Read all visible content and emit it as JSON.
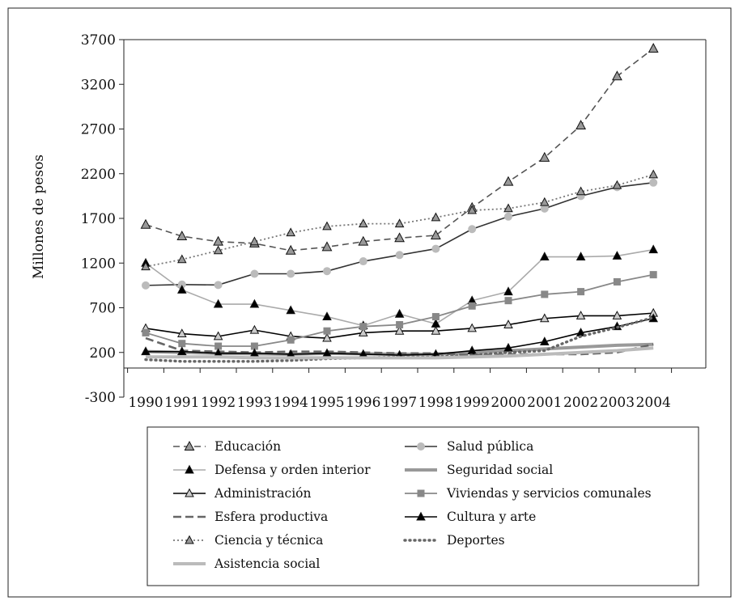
{
  "chart_data": {
    "type": "line",
    "title": "",
    "xlabel": "",
    "ylabel": "Millones de pesos",
    "ylim": [
      -300,
      3700
    ],
    "y_ticks": [
      -300,
      200,
      700,
      1200,
      1700,
      2200,
      2700,
      3200,
      3700
    ],
    "x": [
      "1990",
      "1991",
      "1992",
      "1993",
      "1994",
      "1995",
      "1996",
      "1997",
      "1998",
      "1999",
      "2000",
      "2001",
      "2002",
      "2003",
      "2004"
    ],
    "grid": false,
    "legend_position": "bottom",
    "series": [
      {
        "name": "Educación",
        "color": "#555555",
        "dash": "8,5",
        "width": 1.6,
        "marker": "triangle",
        "marker_fill": "#999999",
        "marker_size": 9,
        "values": [
          1630,
          1500,
          1440,
          1420,
          1340,
          1380,
          1440,
          1480,
          1510,
          1820,
          2110,
          2380,
          2740,
          3290,
          3600
        ]
      },
      {
        "name": "Salud pública",
        "color": "#333333",
        "dash": "",
        "width": 1.6,
        "marker": "circle",
        "marker_fill": "#bbbbbb",
        "marker_size": 5,
        "values": [
          950,
          960,
          955,
          1080,
          1080,
          1110,
          1220,
          1290,
          1360,
          1580,
          1720,
          1810,
          1950,
          2050,
          2100
        ]
      },
      {
        "name": "Defensa y orden interior",
        "color": "#aaaaaa",
        "dash": "",
        "width": 1.6,
        "marker": "triangle",
        "marker_fill": "#000000",
        "marker_size": 8,
        "values": [
          1200,
          900,
          740,
          740,
          670,
          600,
          500,
          630,
          520,
          780,
          880,
          1270,
          1270,
          1280,
          1350
        ]
      },
      {
        "name": "Seguridad social",
        "color": "#999999",
        "dash": "",
        "width": 4,
        "marker": "none",
        "marker_fill": "none",
        "marker_size": 0,
        "values": [
          210,
          200,
          190,
          185,
          180,
          190,
          185,
          180,
          180,
          200,
          220,
          240,
          260,
          280,
          290
        ]
      },
      {
        "name": "Administración",
        "color": "#000000",
        "dash": "",
        "width": 1.6,
        "marker": "triangle",
        "marker_fill": "#cccccc",
        "marker_size": 8,
        "values": [
          470,
          410,
          380,
          450,
          380,
          360,
          420,
          440,
          440,
          470,
          510,
          580,
          610,
          610,
          640
        ]
      },
      {
        "name": "Viviendas  y servicios comunales",
        "color": "#888888",
        "dash": "",
        "width": 1.8,
        "marker": "square",
        "marker_fill": "#888888",
        "marker_size": 9,
        "values": [
          420,
          300,
          270,
          270,
          340,
          440,
          490,
          510,
          600,
          720,
          780,
          850,
          880,
          990,
          1070
        ]
      },
      {
        "name": "Esfera productiva",
        "color": "#666666",
        "dash": "10,5",
        "width": 2.6,
        "marker": "none",
        "marker_fill": "none",
        "marker_size": 0,
        "values": [
          360,
          220,
          210,
          200,
          210,
          210,
          200,
          190,
          190,
          170,
          180,
          180,
          180,
          200,
          290
        ]
      },
      {
        "name": "Cultura y arte",
        "color": "#000000",
        "dash": "",
        "width": 1.6,
        "marker": "triangle",
        "marker_fill": "#000000",
        "marker_size": 8,
        "values": [
          210,
          210,
          190,
          190,
          180,
          190,
          180,
          170,
          180,
          220,
          250,
          320,
          420,
          490,
          580
        ]
      },
      {
        "name": "Ciencia y técnica",
        "color": "#777777",
        "dash": "2,3",
        "width": 1.8,
        "marker": "triangle",
        "marker_fill": "#999999",
        "marker_size": 8,
        "values": [
          1160,
          1240,
          1340,
          1440,
          1540,
          1610,
          1640,
          1640,
          1710,
          1790,
          1810,
          1880,
          2000,
          2070,
          2190
        ]
      },
      {
        "name": "Deportes",
        "color": "#666666",
        "dash": "1,5",
        "width": 3.4,
        "marker": "none",
        "marker_fill": "none",
        "marker_size": 0,
        "values": [
          120,
          100,
          100,
          100,
          110,
          130,
          140,
          150,
          150,
          170,
          200,
          220,
          380,
          480,
          590
        ]
      },
      {
        "name": "Asistencia social",
        "color": "#bbbbbb",
        "dash": "",
        "width": 4,
        "marker": "none",
        "marker_fill": "none",
        "marker_size": 0,
        "values": [
          150,
          150,
          150,
          140,
          140,
          140,
          140,
          140,
          140,
          150,
          160,
          180,
          200,
          220,
          250
        ]
      }
    ]
  }
}
